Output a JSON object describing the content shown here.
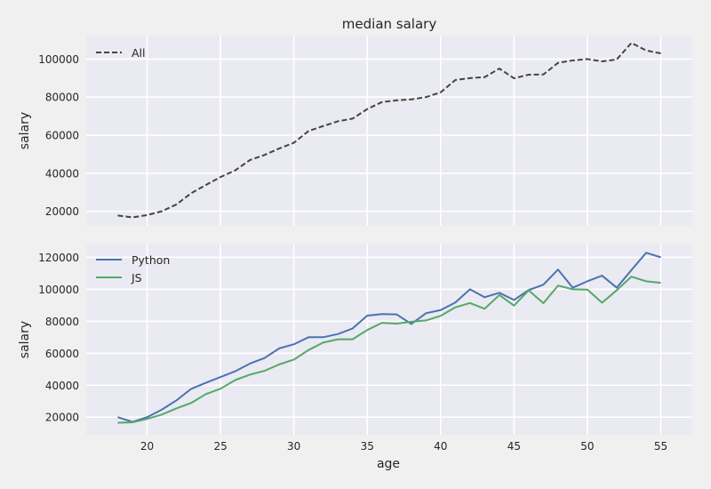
{
  "chart_data": [
    {
      "type": "line",
      "title": "median salary",
      "xlabel": "",
      "ylabel": "salary",
      "xlim": [
        15.85,
        57.15
      ],
      "ylim": [
        12350,
        112350
      ],
      "xticks": [
        20,
        25,
        30,
        35,
        40,
        45,
        50,
        55
      ],
      "show_xtick_labels": false,
      "yticks": [
        20000,
        40000,
        60000,
        80000,
        100000
      ],
      "ytick_labels": [
        "20000",
        "40000",
        "60000",
        "80000",
        "100000"
      ],
      "grid": true,
      "legend_position": "upper-left",
      "x": [
        18,
        19,
        20,
        21,
        22,
        23,
        24,
        25,
        26,
        27,
        28,
        29,
        30,
        31,
        32,
        33,
        34,
        35,
        36,
        37,
        38,
        39,
        40,
        41,
        42,
        43,
        44,
        45,
        46,
        47,
        48,
        49,
        50,
        51,
        52,
        53,
        54,
        55
      ],
      "series": [
        {
          "name": "All",
          "color": "#444444",
          "linestyle": "dashed",
          "values": [
            17800,
            16800,
            18000,
            20000,
            23600,
            29500,
            33800,
            38000,
            41500,
            46900,
            49600,
            53000,
            56000,
            62200,
            64800,
            67300,
            68700,
            73700,
            77400,
            78300,
            78800,
            80000,
            82500,
            89000,
            90000,
            90500,
            95000,
            89900,
            91800,
            91900,
            98000,
            99300,
            100000,
            98800,
            99800,
            108500,
            104500,
            103000
          ]
        }
      ]
    },
    {
      "type": "line",
      "title": "",
      "xlabel": "age",
      "ylabel": "salary",
      "xlim": [
        15.85,
        57.15
      ],
      "ylim": [
        9000,
        128000
      ],
      "xticks": [
        20,
        25,
        30,
        35,
        40,
        45,
        50,
        55
      ],
      "xtick_labels": [
        "20",
        "25",
        "30",
        "35",
        "40",
        "45",
        "50",
        "55"
      ],
      "yticks": [
        20000,
        40000,
        60000,
        80000,
        100000,
        120000
      ],
      "ytick_labels": [
        "20000",
        "40000",
        "60000",
        "80000",
        "100000",
        "120000"
      ],
      "grid": true,
      "legend_position": "upper-left",
      "x": [
        18,
        19,
        20,
        21,
        22,
        23,
        24,
        25,
        26,
        27,
        28,
        29,
        30,
        31,
        32,
        33,
        34,
        35,
        36,
        37,
        38,
        39,
        40,
        41,
        42,
        43,
        44,
        45,
        46,
        47,
        48,
        49,
        50,
        51,
        52,
        53,
        54,
        55
      ],
      "series": [
        {
          "name": "Python",
          "color": "#4c72b0",
          "linestyle": "solid",
          "values": [
            20000,
            17000,
            20000,
            24700,
            30500,
            37700,
            41500,
            45100,
            48700,
            53500,
            57000,
            63000,
            65600,
            70000,
            70000,
            72000,
            75500,
            83500,
            84500,
            84300,
            78300,
            85000,
            87000,
            91700,
            100000,
            95000,
            97800,
            93300,
            99500,
            102900,
            112300,
            101000,
            105000,
            108500,
            101000,
            112000,
            122800,
            120000
          ]
        },
        {
          "name": "JS",
          "color": "#55a868",
          "linestyle": "solid",
          "values": [
            16500,
            16800,
            18900,
            21600,
            25500,
            28900,
            34400,
            37800,
            43200,
            46600,
            49000,
            53000,
            56000,
            62000,
            66700,
            68700,
            68700,
            74500,
            79000,
            78500,
            79700,
            80500,
            83400,
            88700,
            91400,
            87800,
            96400,
            89800,
            99300,
            91300,
            102300,
            100000,
            99800,
            91600,
            99400,
            107900,
            105000,
            104000
          ]
        }
      ]
    }
  ],
  "colors": {
    "figure_background": "#f0f0f0",
    "axes_background": "#eaeaf2",
    "grid": "#ffffff",
    "text": "#262626"
  }
}
